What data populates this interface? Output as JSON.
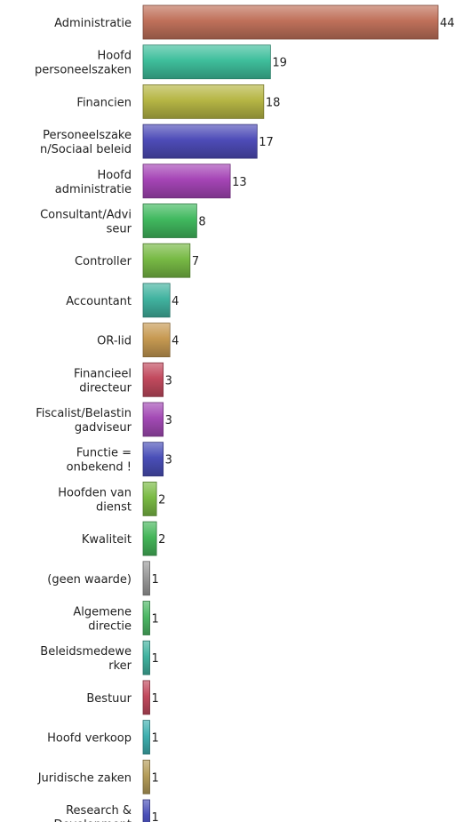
{
  "chart_data": {
    "type": "bar",
    "orientation": "horizontal",
    "title": "",
    "xlabel": "",
    "ylabel": "",
    "grid": false,
    "legend": "none",
    "xlim": [
      0,
      44
    ],
    "categories": [
      {
        "lines": [
          "Administratie"
        ],
        "value": 44,
        "color": "#c0715b"
      },
      {
        "lines": [
          "Hoofd",
          "personeelszaken"
        ],
        "value": 19,
        "color": "#3fbf9c"
      },
      {
        "lines": [
          "Financien"
        ],
        "value": 18,
        "color": "#b6b645"
      },
      {
        "lines": [
          "Personeelszake",
          "n/Sociaal beleid"
        ],
        "value": 17,
        "color": "#4e4cb8"
      },
      {
        "lines": [
          "Hoofd",
          "administratie"
        ],
        "value": 13,
        "color": "#a545b6"
      },
      {
        "lines": [
          "Consultant/Advi",
          "seur"
        ],
        "value": 8,
        "color": "#41b95f"
      },
      {
        "lines": [
          "Controller"
        ],
        "value": 7,
        "color": "#78ba45"
      },
      {
        "lines": [
          "Accountant"
        ],
        "value": 4,
        "color": "#41b3a0"
      },
      {
        "lines": [
          "OR-lid"
        ],
        "value": 4,
        "color": "#c79a52"
      },
      {
        "lines": [
          "Financieel",
          "directeur"
        ],
        "value": 3,
        "color": "#c24a5e"
      },
      {
        "lines": [
          "Fiscalist/Belastin",
          "gadviseur"
        ],
        "value": 3,
        "color": "#a34ab5"
      },
      {
        "lines": [
          "Functie =",
          "onbekend !"
        ],
        "value": 3,
        "color": "#4a4fb8"
      },
      {
        "lines": [
          "Hoofden van",
          "dienst"
        ],
        "value": 2,
        "color": "#7bbb45"
      },
      {
        "lines": [
          "Kwaliteit"
        ],
        "value": 2,
        "color": "#45b65a"
      },
      {
        "lines": [
          "(geen waarde)"
        ],
        "value": 1,
        "color": "#9a9a9a"
      },
      {
        "lines": [
          "Algemene",
          "directie"
        ],
        "value": 1,
        "color": "#4db865"
      },
      {
        "lines": [
          "Beleidsmedewe",
          "rker"
        ],
        "value": 1,
        "color": "#41b3a0"
      },
      {
        "lines": [
          "Bestuur"
        ],
        "value": 1,
        "color": "#c24a5e"
      },
      {
        "lines": [
          "Hoofd verkoop"
        ],
        "value": 1,
        "color": "#3fb0b0"
      },
      {
        "lines": [
          "Juridische zaken"
        ],
        "value": 1,
        "color": "#b59d5a"
      },
      {
        "lines": [
          "Research &",
          "Development"
        ],
        "value": 1,
        "color": "#4a4fb8"
      }
    ]
  }
}
